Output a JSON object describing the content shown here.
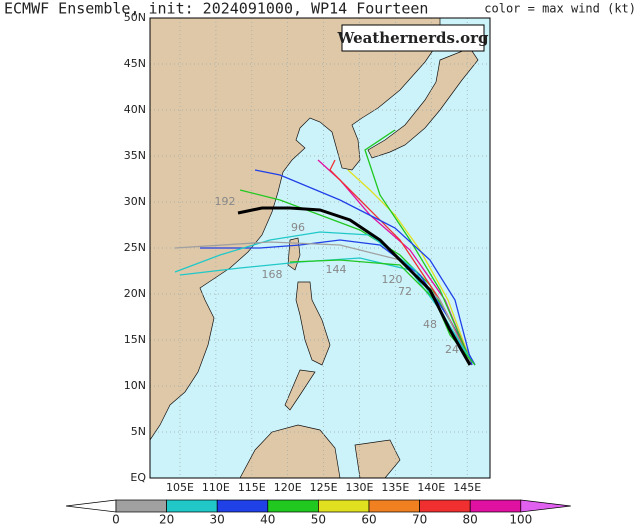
{
  "title": "ECMWF Ensemble, init: 2024091000, WP14 Fourteen",
  "legend_label": "color = max wind (kt)",
  "watermark": "Weathernerds.org",
  "lat_labels": [
    "50N",
    "45N",
    "40N",
    "35N",
    "30N",
    "25N",
    "20N",
    "15N",
    "10N",
    "5N",
    "EQ"
  ],
  "lon_labels": [
    "105E",
    "110E",
    "115E",
    "120E",
    "125E",
    "130E",
    "135E",
    "140E",
    "145E"
  ],
  "colorbar": {
    "labels": [
      "0",
      "20",
      "30",
      "40",
      "50",
      "60",
      "70",
      "80",
      "100"
    ],
    "colors": [
      "#ffffff",
      "#a0a0a0",
      "#20c8c8",
      "#2040e8",
      "#20c820",
      "#e0e020",
      "#f08020",
      "#f03030",
      "#e010a0",
      "#e060f0"
    ]
  },
  "track_labels": [
    "168",
    "144",
    "120",
    "96",
    "72",
    "48",
    "24",
    "192"
  ]
}
